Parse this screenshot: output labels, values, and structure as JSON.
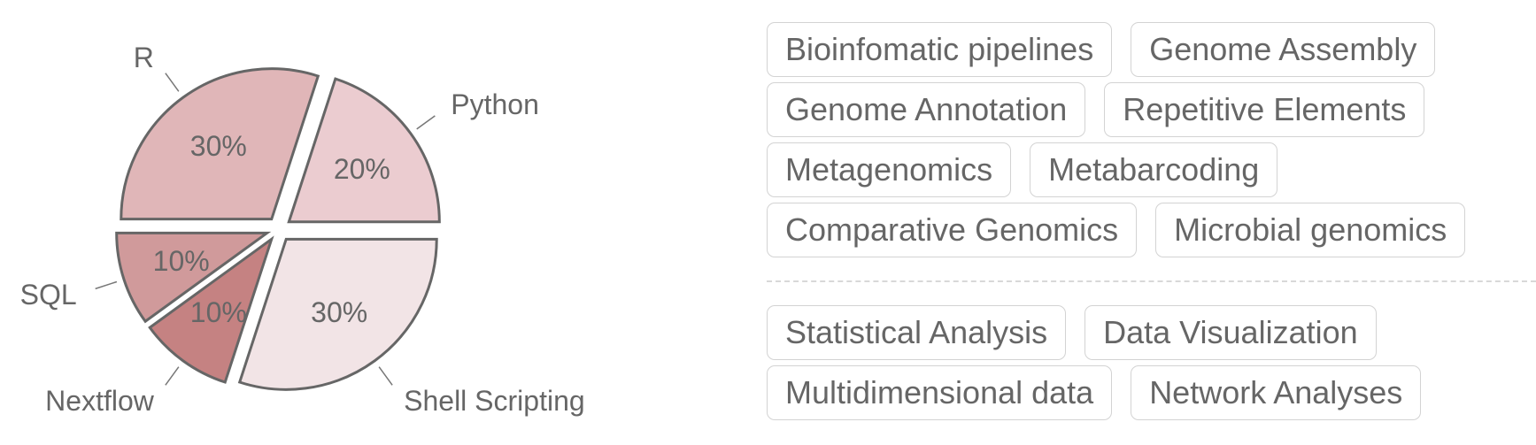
{
  "chart_data": {
    "type": "pie",
    "title": "",
    "slices": [
      {
        "label": "Shell Scripting",
        "value": 30,
        "percent_label": "30%",
        "color": "#f2e4e6"
      },
      {
        "label": "Nextflow",
        "value": 10,
        "percent_label": "10%",
        "color": "#c58282"
      },
      {
        "label": "SQL",
        "value": 10,
        "percent_label": "10%",
        "color": "#d09a9b"
      },
      {
        "label": "R",
        "value": 30,
        "percent_label": "30%",
        "color": "#e0b6b8"
      },
      {
        "label": "Python",
        "value": 20,
        "percent_label": "20%",
        "color": "#ebccd0"
      }
    ],
    "edge_color": "#666666",
    "exploded": true
  },
  "tags": {
    "domains": [
      "Bioinfomatic pipelines",
      "Genome Assembly",
      "Genome Annotation",
      "Repetitive Elements",
      "Metagenomics",
      "Metabarcoding",
      "Comparative Genomics",
      "Microbial genomics"
    ],
    "analysis": [
      "Statistical Analysis",
      "Data Visualization",
      "Multidimensional data",
      "Network Analyses"
    ]
  }
}
